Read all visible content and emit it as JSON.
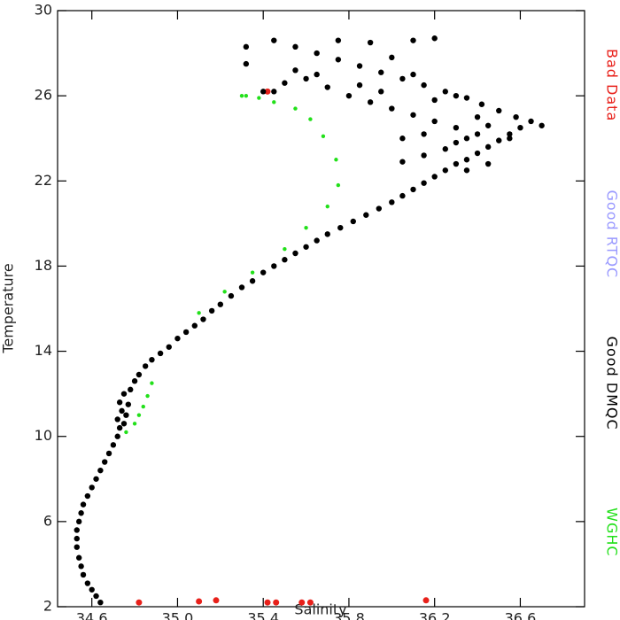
{
  "chart_data": {
    "type": "scatter",
    "x_label": "Salinity",
    "y_label": "Temperature",
    "xlim": [
      34.44,
      36.9
    ],
    "xticks": [
      34.6,
      {
        "value": 35.0,
        "label": "35.0"
      },
      35.4,
      35.8,
      36.2,
      36.6
    ],
    "ylim": [
      2,
      30
    ],
    "yticks": [
      2,
      6,
      10,
      14,
      18,
      22,
      26,
      30
    ],
    "legend_position": "right",
    "series": [
      {
        "name": "Bad Data",
        "color": "#e8201a",
        "size": 3.5,
        "x": [
          35.42,
          34.82,
          35.1,
          35.18,
          35.42,
          35.46,
          35.58,
          35.62,
          36.16
        ],
        "y": [
          26.2,
          2.2,
          2.25,
          2.3,
          2.2,
          2.2,
          2.2,
          2.2,
          2.3
        ]
      },
      {
        "name": "Good RTQC",
        "color": "#9999ff",
        "size": 3,
        "x": [],
        "y": []
      },
      {
        "name": "Good DMQC",
        "color": "#000000",
        "size": 3.2,
        "x": [
          34.64,
          34.62,
          34.6,
          34.58,
          34.56,
          34.55,
          34.54,
          34.53,
          34.53,
          34.53,
          34.54,
          34.55,
          34.56,
          34.58,
          34.6,
          34.62,
          34.64,
          34.66,
          34.68,
          34.7,
          34.72,
          34.73,
          34.72,
          34.75,
          34.74,
          34.76,
          34.73,
          34.77,
          34.75,
          34.78,
          34.8,
          34.82,
          34.85,
          34.88,
          34.92,
          34.96,
          35.0,
          35.04,
          35.08,
          35.12,
          35.16,
          35.2,
          35.25,
          35.3,
          35.35,
          35.4,
          35.45,
          35.5,
          35.55,
          35.6,
          35.65,
          35.7,
          35.76,
          35.82,
          35.88,
          35.94,
          36.0,
          36.05,
          36.1,
          36.15,
          36.2,
          36.25,
          36.3,
          36.35,
          36.4,
          36.45,
          36.5,
          36.55,
          36.6,
          36.65,
          36.7,
          36.58,
          36.5,
          36.42,
          36.35,
          36.25,
          36.15,
          36.05,
          35.95,
          35.85,
          35.75,
          35.65,
          35.55,
          35.45,
          35.6,
          35.55,
          35.5,
          35.45,
          35.4,
          35.32,
          35.32,
          35.7,
          35.8,
          35.9,
          36.0,
          36.1,
          36.2,
          36.3,
          36.4,
          36.25,
          36.15,
          36.05,
          36.2,
          36.3,
          36.1,
          36.0,
          35.9,
          35.75,
          36.1,
          36.2,
          35.65,
          35.85,
          36.35,
          36.45,
          36.55,
          36.45,
          36.35,
          36.3,
          35.95,
          36.15,
          36.4,
          36.05
        ],
        "y": [
          2.2,
          2.5,
          2.8,
          3.1,
          3.5,
          3.9,
          4.3,
          4.8,
          5.2,
          5.6,
          6.0,
          6.4,
          6.8,
          7.2,
          7.6,
          8.0,
          8.4,
          8.8,
          9.2,
          9.6,
          10.0,
          10.4,
          10.8,
          10.6,
          11.2,
          11.0,
          11.6,
          11.5,
          12.0,
          12.2,
          12.6,
          12.9,
          13.3,
          13.6,
          13.9,
          14.2,
          14.6,
          14.9,
          15.2,
          15.5,
          15.9,
          16.2,
          16.6,
          17.0,
          17.3,
          17.7,
          18.0,
          18.3,
          18.6,
          18.9,
          19.2,
          19.5,
          19.8,
          20.1,
          20.4,
          20.7,
          21.0,
          21.3,
          21.6,
          21.9,
          22.2,
          22.5,
          22.8,
          23.0,
          23.3,
          23.6,
          23.9,
          24.2,
          24.5,
          24.8,
          24.6,
          25.0,
          25.3,
          25.6,
          25.9,
          26.2,
          26.5,
          26.8,
          27.1,
          27.4,
          27.7,
          28.0,
          28.3,
          28.6,
          26.8,
          27.2,
          26.6,
          26.2,
          26.2,
          28.3,
          27.5,
          26.4,
          26.0,
          25.7,
          25.4,
          25.1,
          24.8,
          24.5,
          24.2,
          23.5,
          23.2,
          22.9,
          25.8,
          26.0,
          27.0,
          27.8,
          28.5,
          28.6,
          28.6,
          28.7,
          27.0,
          26.5,
          24.0,
          24.6,
          24.0,
          22.8,
          22.5,
          23.8,
          26.2,
          24.2,
          25.0,
          24.0
        ]
      },
      {
        "name": "WGHC",
        "color": "#22e01a",
        "size": 2.2,
        "x": [
          35.3,
          35.32,
          35.38,
          35.45,
          35.55,
          35.62,
          35.68,
          35.74,
          35.75,
          35.7,
          35.6,
          35.5,
          35.35,
          35.22,
          35.1,
          34.88,
          34.86,
          34.84,
          34.82,
          34.8,
          34.76
        ],
        "y": [
          26.0,
          26.0,
          25.9,
          25.7,
          25.4,
          24.9,
          24.1,
          23.0,
          21.8,
          20.8,
          19.8,
          18.8,
          17.7,
          16.8,
          15.8,
          12.5,
          11.9,
          11.4,
          11.0,
          10.6,
          10.2
        ]
      }
    ]
  }
}
